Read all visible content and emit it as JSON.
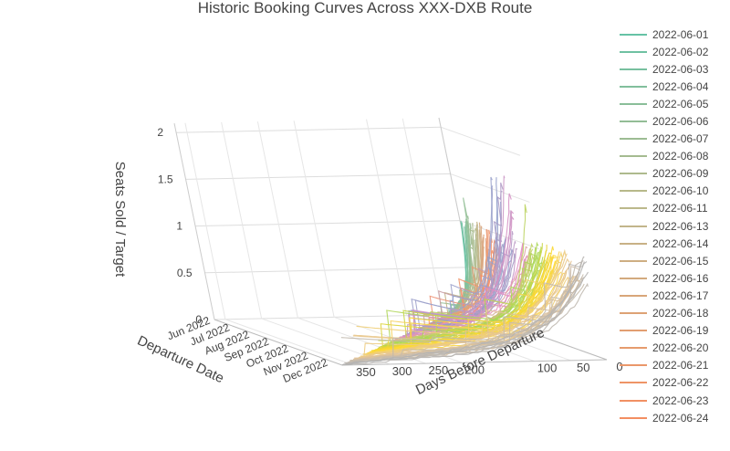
{
  "chart_data": {
    "type": "line",
    "title": "Historic Booking Curves Across XXX-DXB Route",
    "x_axis": {
      "label": "Days Before Departure",
      "ticks": [
        0,
        50,
        100,
        200,
        250,
        300,
        350
      ]
    },
    "y_axis": {
      "label": "Departure Date",
      "ticks": [
        "Jun 2022",
        "Jul 2022",
        "Aug 2022",
        "Sep 2022",
        "Oct 2022",
        "Nov 2022",
        "Dec 2022"
      ]
    },
    "z_axis": {
      "label": "Seats Sold / Target",
      "ticks": [
        "0",
        "0.5",
        "1",
        "1.5",
        "2"
      ],
      "range": [
        0,
        2.1
      ]
    },
    "series": [
      {
        "name": "2022-06-01",
        "color": "#66c2a5"
      },
      {
        "name": "2022-06-02",
        "color": "#6fc1a2"
      },
      {
        "name": "2022-06-03",
        "color": "#78c09f"
      },
      {
        "name": "2022-06-04",
        "color": "#81bf9c"
      },
      {
        "name": "2022-06-05",
        "color": "#8abe99"
      },
      {
        "name": "2022-06-06",
        "color": "#93bd96"
      },
      {
        "name": "2022-06-07",
        "color": "#9cbc93"
      },
      {
        "name": "2022-06-08",
        "color": "#a5bb90"
      },
      {
        "name": "2022-06-09",
        "color": "#aeba8d"
      },
      {
        "name": "2022-06-10",
        "color": "#b7b98a"
      },
      {
        "name": "2022-06-11",
        "color": "#bcb98b"
      },
      {
        "name": "2022-06-13",
        "color": "#c2b58b"
      },
      {
        "name": "2022-06-14",
        "color": "#c8b186"
      },
      {
        "name": "2022-06-15",
        "color": "#ceae82"
      },
      {
        "name": "2022-06-16",
        "color": "#d3aa7e"
      },
      {
        "name": "2022-06-17",
        "color": "#d8a679"
      },
      {
        "name": "2022-06-18",
        "color": "#dda275"
      },
      {
        "name": "2022-06-19",
        "color": "#e29e71"
      },
      {
        "name": "2022-06-20",
        "color": "#e69b6d"
      },
      {
        "name": "2022-06-21",
        "color": "#ea976a"
      },
      {
        "name": "2022-06-22",
        "color": "#ee9466"
      },
      {
        "name": "2022-06-23",
        "color": "#f19063"
      },
      {
        "name": "2022-06-24",
        "color": "#f38e61"
      }
    ]
  }
}
